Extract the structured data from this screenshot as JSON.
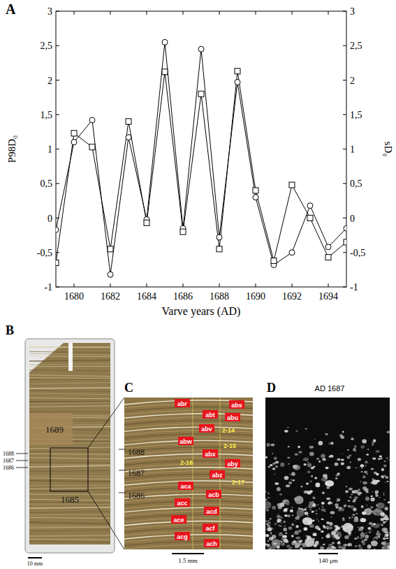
{
  "chart_data": {
    "type": "line",
    "annotations": [
      "A"
    ],
    "x_label": "Varve years (AD)",
    "y_label": "P98D₀",
    "y2_label": "sD₀",
    "x": [
      1679,
      1680,
      1681,
      1682,
      1683,
      1684,
      1685,
      1686,
      1687,
      1688,
      1689,
      1690,
      1691,
      1692,
      1693,
      1694,
      1695
    ],
    "series": [
      {
        "color": "#000000",
        "marker": "circle",
        "line_style": "solid",
        "values": [
          -0.17,
          1.1,
          1.42,
          -0.82,
          1.17,
          -0.02,
          2.55,
          -0.15,
          2.45,
          -0.28,
          1.97,
          0.3,
          -0.68,
          -0.5,
          0.18,
          -0.42,
          -0.15
        ]
      },
      {
        "color": "#000000",
        "marker": "square",
        "line_style": "solid",
        "axis": "y2",
        "values": [
          -0.65,
          1.23,
          1.03,
          -0.45,
          1.4,
          -0.07,
          2.12,
          -0.2,
          1.8,
          -0.45,
          2.13,
          0.4,
          -0.62,
          0.48,
          0.0,
          -0.57,
          -0.35
        ]
      }
    ],
    "xlim": [
      1679,
      1695
    ],
    "xticks": [
      1680,
      1682,
      1684,
      1686,
      1688,
      1690,
      1692,
      1694
    ],
    "ylim": [
      -1,
      3
    ],
    "yticks": [
      -1,
      {
        "value": -0.5,
        "label": "-0,5"
      },
      0,
      {
        "value": 0.5,
        "label": "0,5"
      },
      1,
      {
        "value": 1.5,
        "label": "1,5"
      },
      2,
      {
        "value": 2.5,
        "label": "2,5"
      },
      3
    ],
    "y2lim": [
      -1,
      3
    ],
    "y2ticks": [
      -1,
      {
        "value": -0.5,
        "label": "-0,5"
      },
      0,
      {
        "value": 0.5,
        "label": "0,5"
      },
      1,
      {
        "value": 1.5,
        "label": "1,5"
      },
      2,
      {
        "value": 2.5,
        "label": "2,5"
      },
      3
    ],
    "grid": false
  },
  "photo_panels": {
    "B": {
      "letter": "B",
      "center_years": [
        "1689",
        "1685"
      ],
      "side_years": [
        "1688",
        "1687",
        "1686"
      ],
      "scale_bar": "10 mm"
    },
    "C": {
      "letter": "C",
      "years": [
        "1688",
        "1687",
        "1686"
      ],
      "sample_labels": [
        "abr",
        "abs",
        "abt",
        "abu",
        "abv",
        "abw",
        "abx",
        "aby",
        "abz",
        "aca",
        "acb",
        "acc",
        "acd",
        "ace",
        "acf",
        "acg",
        "ach"
      ],
      "section_labels": [
        "2-14",
        "2-15",
        "2-16",
        "2-17"
      ],
      "scale_bar": "1.5 mm"
    },
    "D": {
      "letter": "D",
      "title": "AD 1687",
      "scale_bar": "140 μm"
    }
  }
}
